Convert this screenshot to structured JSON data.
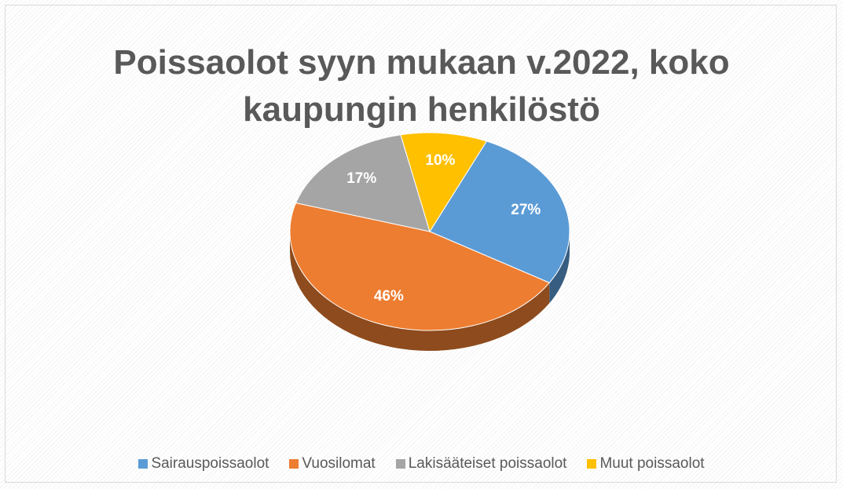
{
  "chart_data": {
    "type": "pie",
    "title": "Poissaolot syyn mukaan v.2022, koko kaupungin henkilöstö",
    "categories": [
      "Sairauspoissaolot",
      "Vuosilomat",
      "Lakisääteiset poissaolot",
      "Muut poissaolot"
    ],
    "values": [
      27,
      46,
      17,
      10
    ],
    "value_labels": [
      "27%",
      "46%",
      "17%",
      "10%"
    ],
    "colors": [
      "#5b9bd5",
      "#ed7d31",
      "#a5a5a5",
      "#ffc000"
    ],
    "legend": "bottom"
  }
}
